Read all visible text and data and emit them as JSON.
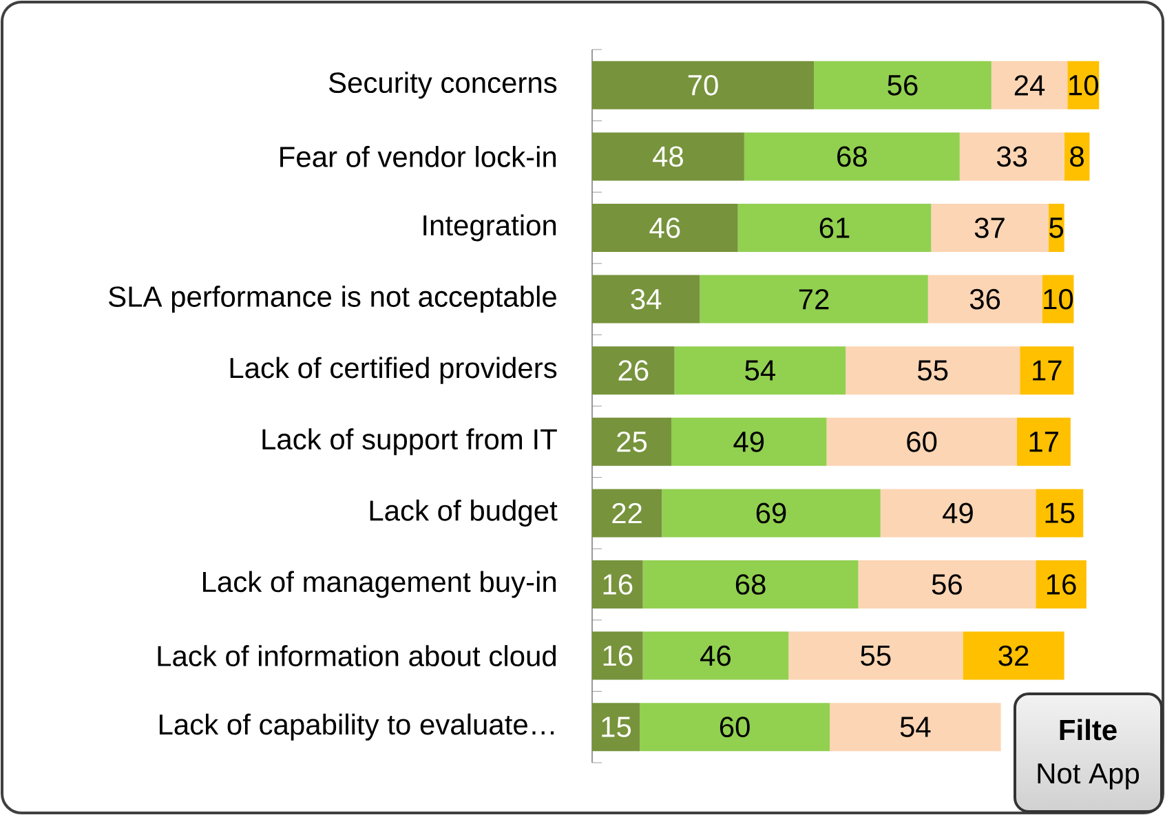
{
  "chart_data": {
    "type": "bar",
    "orientation": "horizontal",
    "stacked": true,
    "data_labels": true,
    "categories": [
      "Security concerns",
      "Fear of vendor lock-in",
      "Integration",
      "SLA performance is not acceptable",
      "Lack of certified providers",
      "Lack of support from IT",
      "Lack of budget",
      "Lack of management buy-in",
      "Lack of information about cloud",
      "Lack of capability to evaluate…"
    ],
    "series": [
      {
        "color": "#77933c",
        "values": [
          70,
          48,
          46,
          34,
          26,
          25,
          22,
          16,
          16,
          15
        ]
      },
      {
        "color": "#92d050",
        "values": [
          56,
          68,
          61,
          72,
          54,
          49,
          69,
          68,
          46,
          60
        ]
      },
      {
        "color": "#fcd5b4",
        "values": [
          24,
          33,
          37,
          36,
          55,
          60,
          49,
          56,
          55,
          54
        ]
      },
      {
        "color": "#ffc000",
        "values": [
          10,
          8,
          5,
          10,
          17,
          17,
          15,
          16,
          32,
          null
        ]
      }
    ],
    "annotations": [
      "Filte",
      "Not App"
    ]
  }
}
